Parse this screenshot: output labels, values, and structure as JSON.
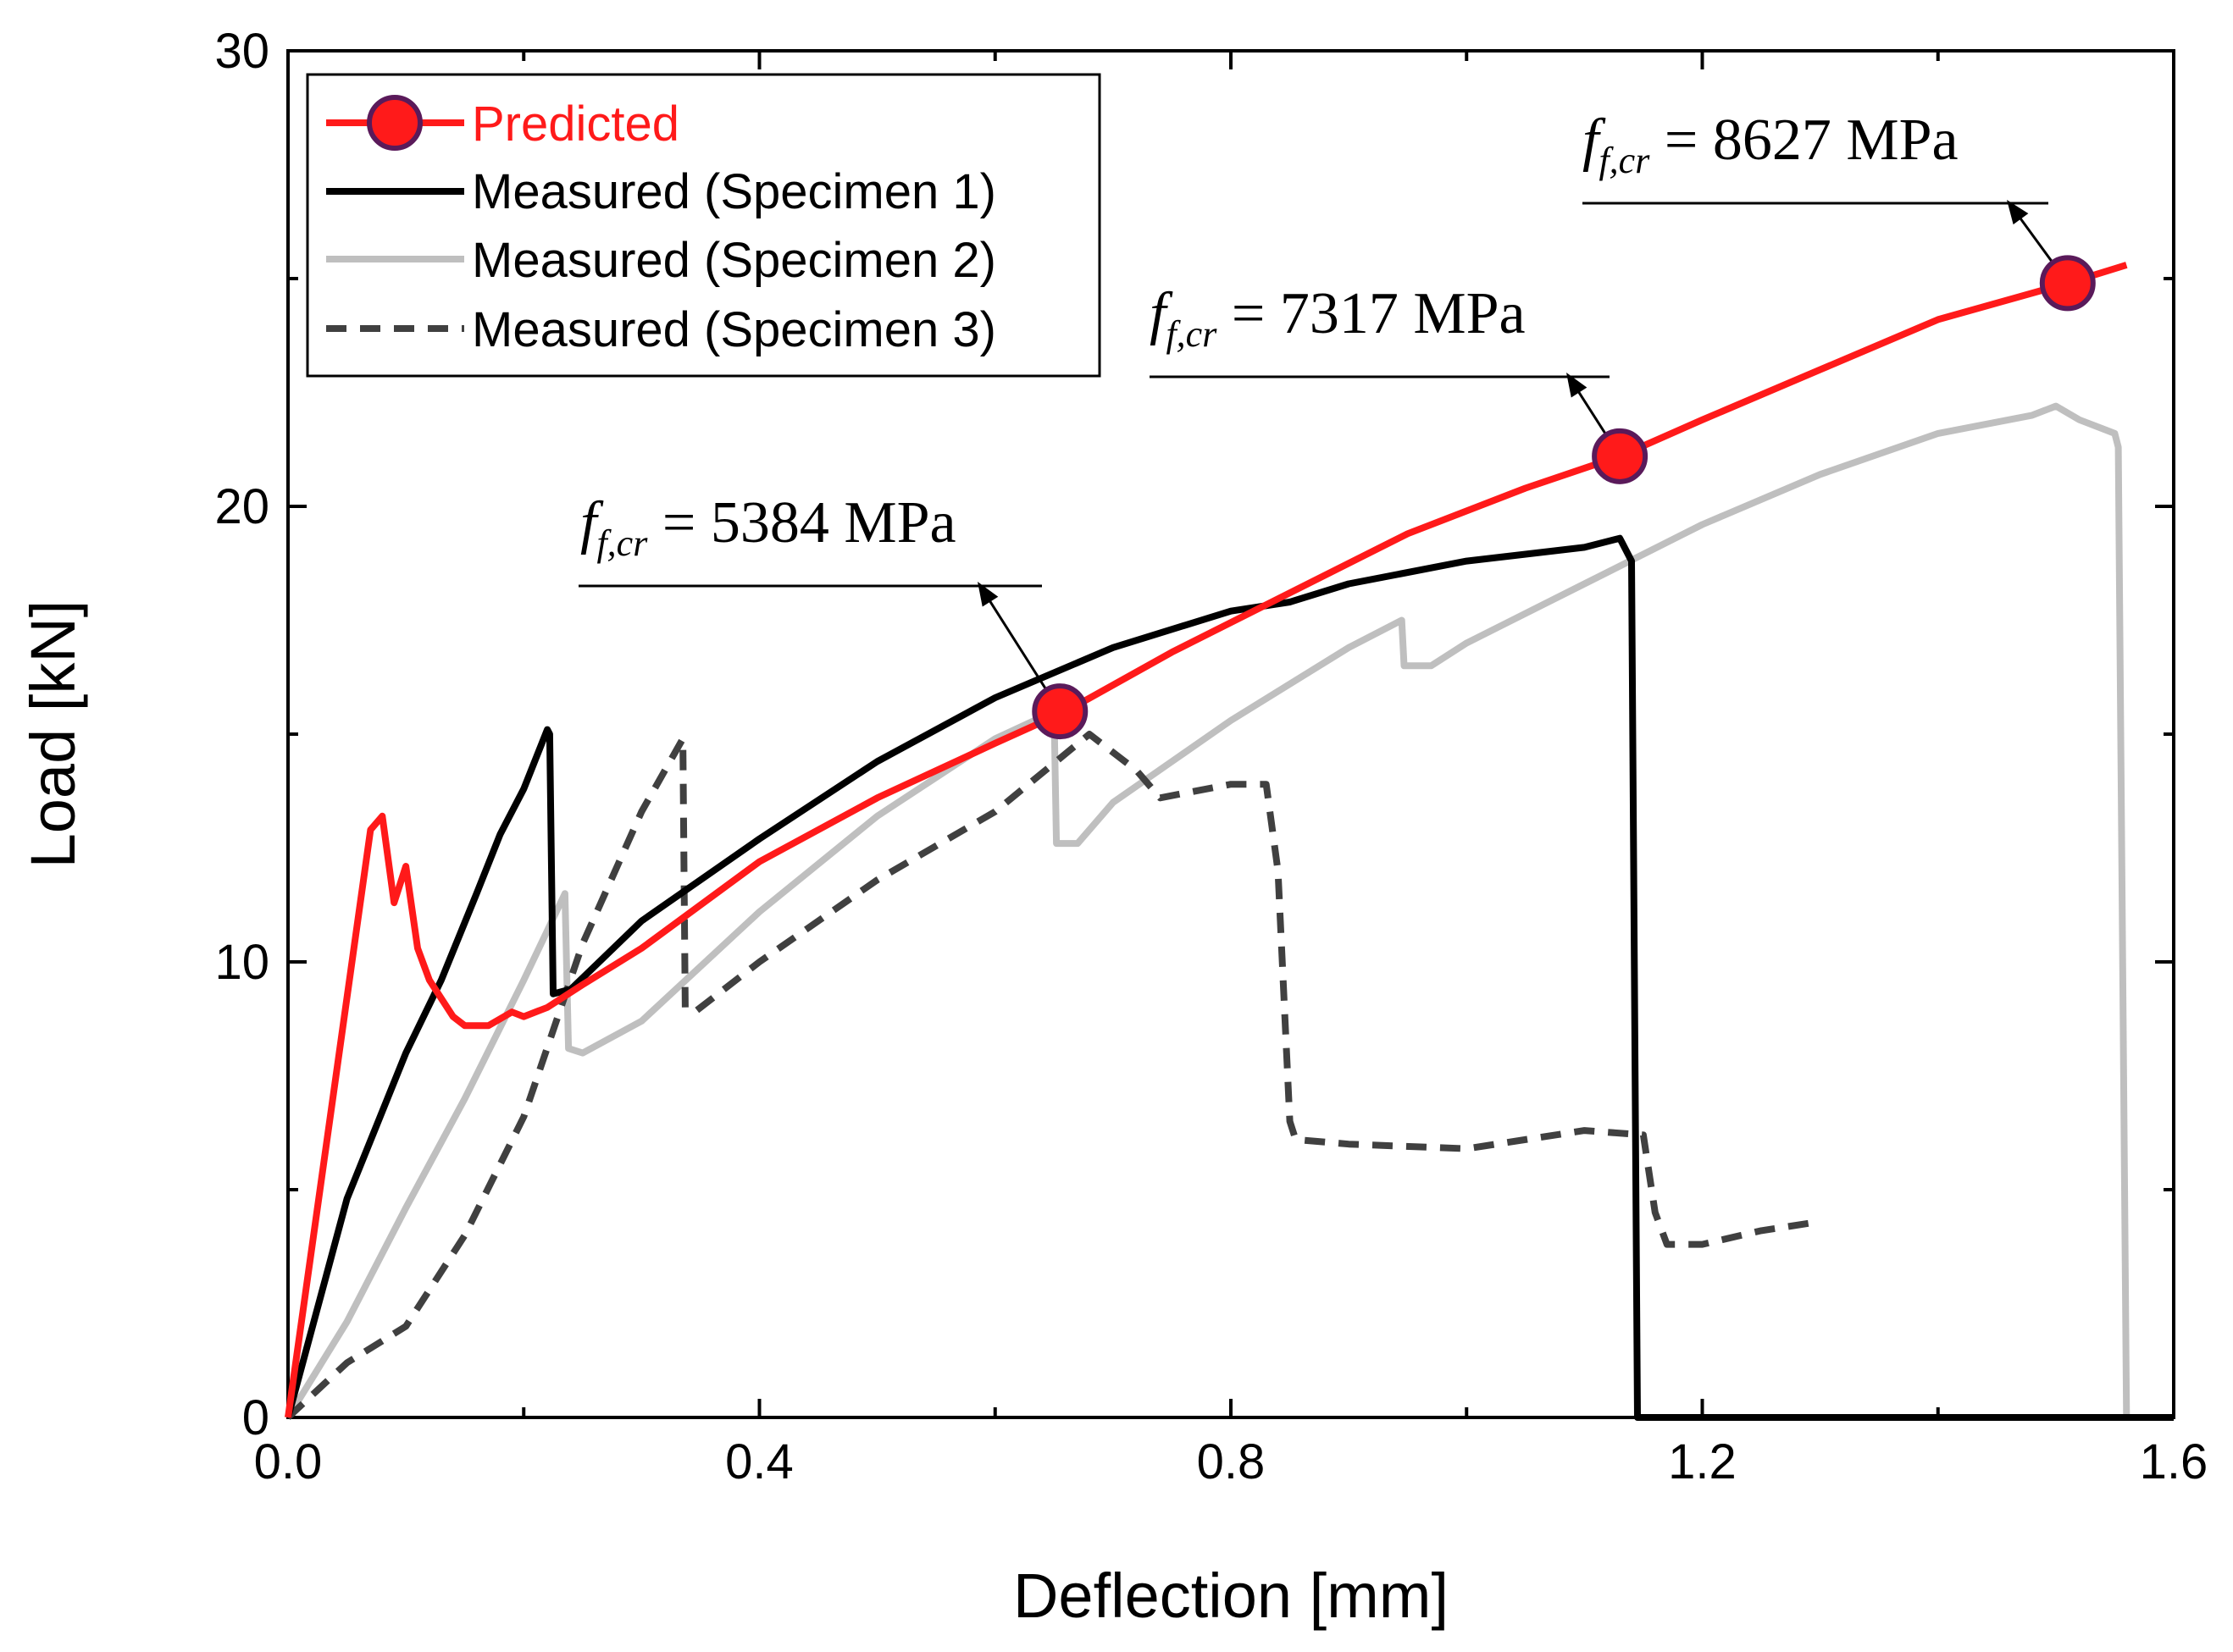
{
  "chart_data": {
    "type": "line",
    "xlabel": "Deflection [mm]",
    "ylabel": "Load [kN]",
    "xlim": [
      0,
      1.6
    ],
    "ylim": [
      0,
      30
    ],
    "xticks": [
      "0.0",
      "0.4",
      "0.8",
      "1.2",
      "1.6"
    ],
    "yticks": [
      "0",
      "10",
      "20",
      "30"
    ],
    "legend_position": "top-left",
    "colors": {
      "predicted": "#ff1a1a",
      "marker_fill": "#ff1a1a",
      "marker_edge": "#5a1a5a",
      "specimen1": "#000000",
      "specimen2": "#bfbfbf",
      "specimen3": "#404040"
    },
    "series": [
      {
        "name": "Predicted",
        "style": "solid-with-markers",
        "x": [
          0,
          0.07,
          0.08,
          0.09,
          0.1,
          0.11,
          0.12,
          0.14,
          0.15,
          0.17,
          0.19,
          0.2,
          0.22,
          0.25,
          0.3,
          0.4,
          0.5,
          0.6,
          0.66,
          0.75,
          0.85,
          0.95,
          1.05,
          1.13,
          1.2,
          1.3,
          1.4,
          1.51,
          1.56
        ],
        "y": [
          0,
          12.9,
          13.2,
          11.3,
          12.1,
          10.3,
          9.6,
          8.8,
          8.6,
          8.6,
          8.9,
          8.8,
          9.0,
          9.5,
          10.3,
          12.2,
          13.6,
          14.8,
          15.5,
          16.8,
          18.1,
          19.4,
          20.4,
          21.1,
          21.9,
          23.0,
          24.1,
          24.9,
          25.3
        ]
      },
      {
        "name": "Measured (Specimen 1)",
        "style": "solid",
        "x": [
          0,
          0.05,
          0.1,
          0.13,
          0.16,
          0.18,
          0.2,
          0.22,
          0.222,
          0.225,
          0.24,
          0.3,
          0.4,
          0.5,
          0.6,
          0.7,
          0.8,
          0.85,
          0.9,
          1.0,
          1.1,
          1.13,
          1.132,
          1.14,
          1.145,
          1.6
        ],
        "y": [
          0,
          4.8,
          8.0,
          9.6,
          11.5,
          12.8,
          13.8,
          15.1,
          15.0,
          9.3,
          9.4,
          10.9,
          12.7,
          14.4,
          15.8,
          16.9,
          17.7,
          17.9,
          18.3,
          18.8,
          19.1,
          19.3,
          19.2,
          18.8,
          0,
          0
        ]
      },
      {
        "name": "Measured (Specimen 2)",
        "style": "solid",
        "x": [
          0,
          0.05,
          0.1,
          0.15,
          0.2,
          0.235,
          0.238,
          0.25,
          0.3,
          0.4,
          0.5,
          0.6,
          0.65,
          0.652,
          0.67,
          0.7,
          0.8,
          0.9,
          0.945,
          0.947,
          0.97,
          1.0,
          1.1,
          1.2,
          1.3,
          1.4,
          1.48,
          1.5,
          1.52,
          1.54,
          1.55,
          1.553,
          1.56,
          1.6
        ],
        "y": [
          0,
          2.1,
          4.6,
          7.0,
          9.6,
          11.5,
          8.1,
          8.0,
          8.7,
          11.1,
          13.2,
          14.9,
          15.5,
          12.6,
          12.6,
          13.5,
          15.3,
          16.9,
          17.5,
          16.5,
          16.5,
          17.0,
          18.3,
          19.6,
          20.7,
          21.6,
          22.0,
          22.2,
          21.9,
          21.7,
          21.6,
          21.3,
          0,
          0
        ]
      },
      {
        "name": "Measured (Specimen 3)",
        "style": "dashed",
        "x": [
          0,
          0.05,
          0.1,
          0.15,
          0.2,
          0.25,
          0.3,
          0.335,
          0.337,
          0.345,
          0.4,
          0.5,
          0.6,
          0.68,
          0.72,
          0.74,
          0.8,
          0.83,
          0.84,
          0.85,
          0.855,
          0.9,
          1.0,
          1.1,
          1.15,
          1.16,
          1.17,
          1.2,
          1.25,
          1.3
        ],
        "y": [
          0,
          1.2,
          2.0,
          4.0,
          6.6,
          10.4,
          13.3,
          14.9,
          9.0,
          8.9,
          10.0,
          11.8,
          13.3,
          15.0,
          14.2,
          13.6,
          13.9,
          13.9,
          12.0,
          6.5,
          6.1,
          6.0,
          5.9,
          6.3,
          6.2,
          4.5,
          3.8,
          3.8,
          4.1,
          4.3
        ]
      }
    ],
    "markers": {
      "series": "Predicted",
      "x": [
        0.655,
        1.13,
        1.51
      ],
      "y": [
        15.5,
        21.1,
        24.9
      ]
    },
    "annotations": [
      {
        "prefix": "f",
        "subscript": "f,cr",
        "text": "= 5384 MPa",
        "x": 0.655,
        "y": 15.5
      },
      {
        "prefix": "f",
        "subscript": "f,cr",
        "text": "= 7317 MPa",
        "x": 1.13,
        "y": 21.1
      },
      {
        "prefix": "f",
        "subscript": "f,cr",
        "text": "= 8627 MPa",
        "x": 1.51,
        "y": 24.9
      }
    ]
  }
}
